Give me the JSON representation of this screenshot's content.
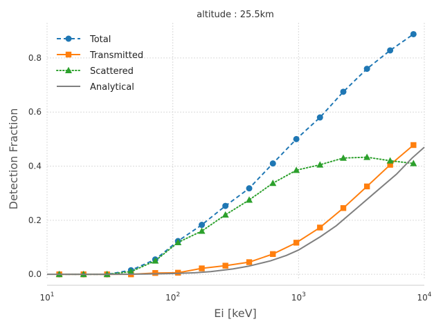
{
  "chart_data": {
    "type": "line",
    "title": "altitude : 25.5km",
    "xlabel": "Ei [keV]",
    "ylabel": "Detection Fraction",
    "x_scale": "log",
    "xlim": [
      10,
      10000
    ],
    "ylim": [
      -0.02,
      0.93
    ],
    "x_ticks": [
      {
        "value": 10,
        "base": "10",
        "exp": "1"
      },
      {
        "value": 100,
        "base": "10",
        "exp": "2"
      },
      {
        "value": 1000,
        "base": "10",
        "exp": "3"
      },
      {
        "value": 10000,
        "base": "10",
        "exp": "4"
      }
    ],
    "y_ticks": [
      {
        "value": 0.0,
        "label": "0.0"
      },
      {
        "value": 0.2,
        "label": "0.2"
      },
      {
        "value": 0.4,
        "label": "0.4"
      },
      {
        "value": 0.6,
        "label": "0.6"
      },
      {
        "value": 0.8,
        "label": "0.8"
      }
    ],
    "grid": true,
    "legend_position": "top-left",
    "x": [
      12.5,
      19.5,
      30,
      46.5,
      72.5,
      110,
      170,
      262,
      405,
      625,
      960,
      1480,
      2270,
      3500,
      5350,
      8200
    ],
    "series": [
      {
        "name": "Total",
        "color": "#1f77b4",
        "line_style": "dashed",
        "marker": "circle",
        "values": [
          0.0,
          0.0,
          0.0,
          0.015,
          0.055,
          0.123,
          0.183,
          0.253,
          0.318,
          0.41,
          0.5,
          0.58,
          0.675,
          0.76,
          0.828,
          0.888
        ]
      },
      {
        "name": "Transmitted",
        "color": "#ff7f0e",
        "line_style": "solid",
        "marker": "square",
        "values": [
          0.0,
          0.0,
          0.0,
          0.0,
          0.005,
          0.006,
          0.022,
          0.032,
          0.045,
          0.075,
          0.117,
          0.173,
          0.245,
          0.325,
          0.405,
          0.478
        ]
      },
      {
        "name": "Scattered",
        "color": "#2ca02c",
        "line_style": "dotted",
        "marker": "triangle",
        "values": [
          0.0,
          0.0,
          0.0,
          0.01,
          0.05,
          0.118,
          0.16,
          0.22,
          0.275,
          0.337,
          0.385,
          0.405,
          0.43,
          0.433,
          0.42,
          0.41
        ]
      },
      {
        "name": "Analytical",
        "color": "#7f7f7f",
        "line_style": "solid",
        "marker": "none",
        "x": [
          10,
          15,
          20,
          30,
          40,
          60,
          80,
          100,
          150,
          200,
          300,
          400,
          600,
          800,
          1000,
          1500,
          2000,
          3000,
          4000,
          6000,
          8000,
          10000
        ],
        "values": [
          0.0,
          0.0,
          0.0,
          0.0,
          0.0005,
          0.001,
          0.002,
          0.003,
          0.006,
          0.01,
          0.02,
          0.03,
          0.05,
          0.07,
          0.09,
          0.14,
          0.18,
          0.25,
          0.3,
          0.37,
          0.43,
          0.47
        ]
      }
    ]
  }
}
